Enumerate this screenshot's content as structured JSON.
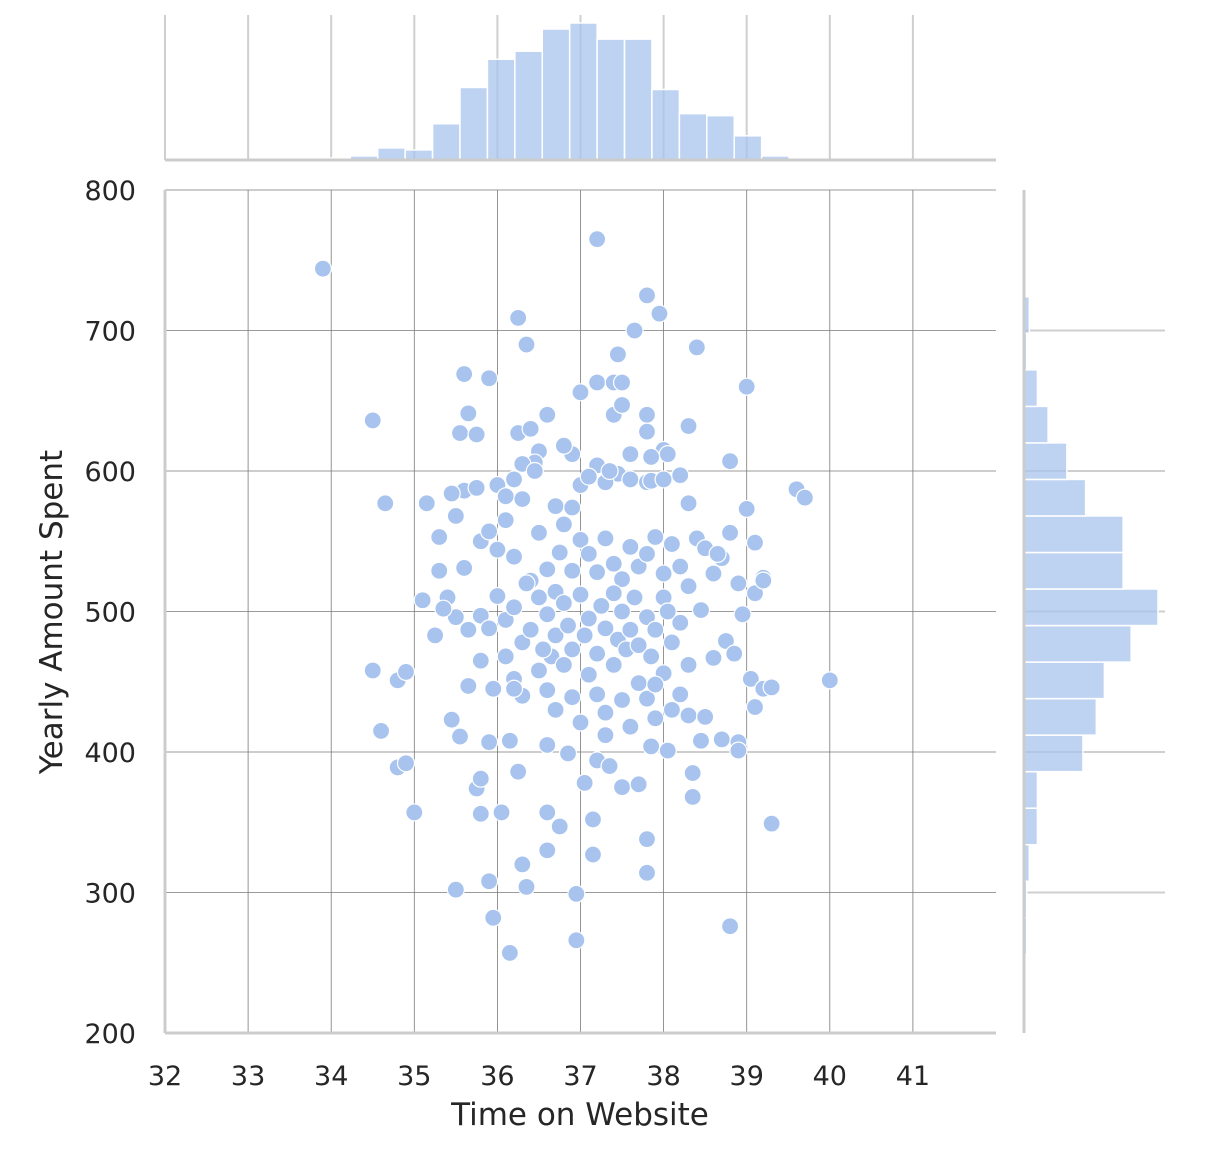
{
  "chart_data": {
    "type": "scatter",
    "xlabel": "Time on Website",
    "ylabel": "Yearly Amount Spent",
    "xlim": [
      32,
      42
    ],
    "ylim": [
      200,
      800
    ],
    "x_ticks": [
      "32",
      "33",
      "34",
      "35",
      "36",
      "37",
      "38",
      "39",
      "40",
      "41"
    ],
    "y_ticks": [
      "200",
      "300",
      "400",
      "500",
      "600",
      "700",
      "800"
    ],
    "grid": true,
    "point_color": "#a8c4ee",
    "marginal_x_histogram": {
      "bin_edges": [
        33.9,
        34.23,
        34.56,
        34.89,
        35.22,
        35.55,
        35.88,
        36.21,
        36.54,
        36.87,
        37.2,
        37.53,
        37.86,
        38.19,
        38.52,
        38.85,
        39.18,
        39.51,
        39.84,
        40.17
      ],
      "counts": [
        1,
        2,
        6,
        5,
        18,
        36,
        50,
        54,
        65,
        68,
        60,
        60,
        35,
        23,
        22,
        12,
        2,
        1,
        0
      ]
    },
    "marginal_y_histogram": {
      "bin_edges": [
        256,
        282,
        308,
        334,
        360,
        386,
        412,
        438,
        464,
        490,
        516,
        542,
        568,
        594,
        620,
        646,
        672,
        698,
        724,
        750
      ],
      "counts": [
        1,
        1,
        2,
        5,
        5,
        22,
        27,
        30,
        40,
        50,
        37,
        37,
        23,
        16,
        9,
        5,
        1,
        2,
        0
      ]
    },
    "points": [
      [
        33.9,
        744
      ],
      [
        37.2,
        765
      ],
      [
        37.8,
        725
      ],
      [
        37.95,
        712
      ],
      [
        36.25,
        709
      ],
      [
        37.65,
        700
      ],
      [
        36.35,
        690
      ],
      [
        38.4,
        688
      ],
      [
        37.45,
        683
      ],
      [
        35.6,
        669
      ],
      [
        35.9,
        666
      ],
      [
        37.2,
        663
      ],
      [
        37.4,
        663
      ],
      [
        37.5,
        663
      ],
      [
        37.0,
        656
      ],
      [
        39.0,
        660
      ],
      [
        35.65,
        641
      ],
      [
        34.5,
        636
      ],
      [
        36.6,
        640
      ],
      [
        37.4,
        640
      ],
      [
        37.8,
        640
      ],
      [
        37.5,
        647
      ],
      [
        35.55,
        627
      ],
      [
        35.75,
        626
      ],
      [
        36.25,
        627
      ],
      [
        36.4,
        630
      ],
      [
        37.8,
        628
      ],
      [
        38.3,
        632
      ],
      [
        36.5,
        614
      ],
      [
        36.9,
        612
      ],
      [
        36.8,
        618
      ],
      [
        37.6,
        612
      ],
      [
        38.0,
        615
      ],
      [
        38.05,
        612
      ],
      [
        37.85,
        610
      ],
      [
        36.45,
        606
      ],
      [
        36.3,
        605
      ],
      [
        38.8,
        607
      ],
      [
        37.2,
        604
      ],
      [
        37.45,
        598
      ],
      [
        38.2,
        597
      ],
      [
        35.15,
        577
      ],
      [
        34.65,
        577
      ],
      [
        35.5,
        568
      ],
      [
        35.6,
        586
      ],
      [
        35.75,
        588
      ],
      [
        35.45,
        584
      ],
      [
        36.0,
        590
      ],
      [
        36.1,
        582
      ],
      [
        36.2,
        594
      ],
      [
        36.3,
        580
      ],
      [
        36.7,
        575
      ],
      [
        36.9,
        574
      ],
      [
        37.0,
        590
      ],
      [
        37.1,
        596
      ],
      [
        37.3,
        592
      ],
      [
        37.6,
        594
      ],
      [
        37.8,
        592
      ],
      [
        37.85,
        593
      ],
      [
        38.0,
        594
      ],
      [
        38.3,
        577
      ],
      [
        39.0,
        573
      ],
      [
        39.6,
        587
      ],
      [
        39.7,
        581
      ],
      [
        35.3,
        553
      ],
      [
        35.6,
        531
      ],
      [
        35.8,
        550
      ],
      [
        35.9,
        557
      ],
      [
        36.0,
        544
      ],
      [
        36.1,
        565
      ],
      [
        36.2,
        539
      ],
      [
        36.4,
        522
      ],
      [
        36.5,
        556
      ],
      [
        36.6,
        530
      ],
      [
        36.7,
        514
      ],
      [
        36.75,
        542
      ],
      [
        36.8,
        562
      ],
      [
        36.9,
        529
      ],
      [
        37.0,
        551
      ],
      [
        37.1,
        541
      ],
      [
        37.2,
        528
      ],
      [
        37.3,
        552
      ],
      [
        37.4,
        534
      ],
      [
        37.5,
        523
      ],
      [
        37.6,
        546
      ],
      [
        37.7,
        532
      ],
      [
        37.8,
        541
      ],
      [
        37.9,
        553
      ],
      [
        38.0,
        527
      ],
      [
        38.1,
        548
      ],
      [
        38.2,
        532
      ],
      [
        38.3,
        518
      ],
      [
        38.4,
        552
      ],
      [
        38.5,
        545
      ],
      [
        38.6,
        527
      ],
      [
        38.7,
        538
      ],
      [
        38.8,
        556
      ],
      [
        38.9,
        520
      ],
      [
        39.1,
        549
      ],
      [
        39.2,
        524
      ],
      [
        35.3,
        529
      ],
      [
        35.1,
        508
      ],
      [
        35.4,
        510
      ],
      [
        35.5,
        496
      ],
      [
        35.65,
        487
      ],
      [
        35.8,
        497
      ],
      [
        35.9,
        488
      ],
      [
        36.0,
        511
      ],
      [
        36.1,
        494
      ],
      [
        36.2,
        503
      ],
      [
        36.3,
        478
      ],
      [
        36.35,
        520
      ],
      [
        36.4,
        487
      ],
      [
        36.5,
        510
      ],
      [
        36.6,
        498
      ],
      [
        36.65,
        468
      ],
      [
        36.7,
        483
      ],
      [
        36.8,
        506
      ],
      [
        36.85,
        490
      ],
      [
        36.9,
        473
      ],
      [
        37.0,
        512
      ],
      [
        37.05,
        483
      ],
      [
        37.1,
        495
      ],
      [
        37.2,
        470
      ],
      [
        37.25,
        504
      ],
      [
        37.3,
        488
      ],
      [
        37.4,
        513
      ],
      [
        37.45,
        480
      ],
      [
        37.5,
        500
      ],
      [
        37.55,
        473
      ],
      [
        37.6,
        487
      ],
      [
        37.65,
        510
      ],
      [
        37.7,
        476
      ],
      [
        37.8,
        496
      ],
      [
        37.85,
        468
      ],
      [
        37.9,
        487
      ],
      [
        38.0,
        510
      ],
      [
        38.1,
        478
      ],
      [
        38.2,
        492
      ],
      [
        38.3,
        462
      ],
      [
        38.45,
        501
      ],
      [
        38.6,
        467
      ],
      [
        38.75,
        479
      ],
      [
        38.85,
        470
      ],
      [
        38.95,
        498
      ],
      [
        39.1,
        513
      ],
      [
        39.2,
        522
      ],
      [
        35.25,
        483
      ],
      [
        34.5,
        458
      ],
      [
        34.8,
        451
      ],
      [
        34.9,
        457
      ],
      [
        35.65,
        447
      ],
      [
        35.8,
        465
      ],
      [
        35.95,
        445
      ],
      [
        36.1,
        468
      ],
      [
        36.2,
        452
      ],
      [
        36.3,
        440
      ],
      [
        36.5,
        458
      ],
      [
        36.6,
        444
      ],
      [
        36.7,
        430
      ],
      [
        36.8,
        462
      ],
      [
        36.9,
        439
      ],
      [
        37.0,
        421
      ],
      [
        37.1,
        455
      ],
      [
        37.2,
        441
      ],
      [
        37.3,
        428
      ],
      [
        37.4,
        462
      ],
      [
        37.5,
        437
      ],
      [
        37.6,
        418
      ],
      [
        37.7,
        449
      ],
      [
        37.8,
        438
      ],
      [
        37.9,
        424
      ],
      [
        38.0,
        456
      ],
      [
        38.1,
        430
      ],
      [
        38.2,
        441
      ],
      [
        38.3,
        426
      ],
      [
        38.45,
        408
      ],
      [
        38.5,
        425
      ],
      [
        38.7,
        409
      ],
      [
        38.9,
        407
      ],
      [
        39.05,
        452
      ],
      [
        39.1,
        432
      ],
      [
        39.2,
        445
      ],
      [
        39.3,
        446
      ],
      [
        40.0,
        451
      ],
      [
        35.45,
        423
      ],
      [
        35.55,
        411
      ],
      [
        34.6,
        415
      ],
      [
        35.9,
        407
      ],
      [
        36.15,
        408
      ],
      [
        36.6,
        405
      ],
      [
        36.85,
        399
      ],
      [
        37.05,
        378
      ],
      [
        37.2,
        394
      ],
      [
        37.35,
        390
      ],
      [
        37.5,
        375
      ],
      [
        37.7,
        377
      ],
      [
        37.85,
        404
      ],
      [
        38.05,
        401
      ],
      [
        38.35,
        385
      ],
      [
        38.9,
        401
      ],
      [
        34.8,
        389
      ],
      [
        34.9,
        392
      ],
      [
        35.75,
        374
      ],
      [
        35.8,
        381
      ],
      [
        36.25,
        386
      ],
      [
        37.15,
        352
      ],
      [
        36.6,
        357
      ],
      [
        35.0,
        357
      ],
      [
        35.8,
        356
      ],
      [
        36.05,
        357
      ],
      [
        36.75,
        347
      ],
      [
        37.8,
        338
      ],
      [
        38.35,
        368
      ],
      [
        39.3,
        349
      ],
      [
        36.6,
        330
      ],
      [
        36.3,
        320
      ],
      [
        37.15,
        327
      ],
      [
        37.8,
        314
      ],
      [
        35.5,
        302
      ],
      [
        35.9,
        308
      ],
      [
        36.35,
        304
      ],
      [
        36.95,
        299
      ],
      [
        35.95,
        282
      ],
      [
        36.15,
        257
      ],
      [
        36.95,
        266
      ],
      [
        38.8,
        276
      ],
      [
        36.45,
        600
      ],
      [
        37.35,
        600
      ],
      [
        38.05,
        500
      ],
      [
        38.65,
        541
      ],
      [
        36.55,
        473
      ],
      [
        37.9,
        448
      ],
      [
        37.3,
        412
      ],
      [
        36.2,
        445
      ],
      [
        35.35,
        502
      ]
    ]
  }
}
